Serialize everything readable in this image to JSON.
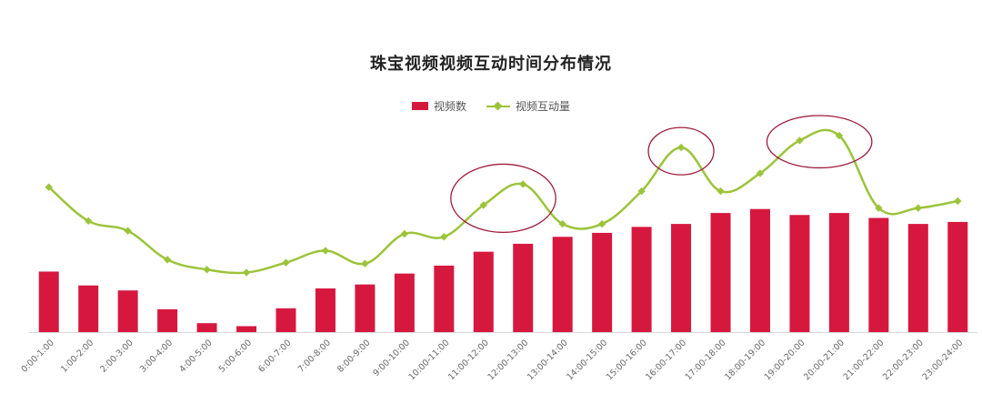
{
  "chart_data": {
    "type": "bar",
    "title": "珠宝视频视频互动时间分布情况",
    "categories": [
      "0:00-1:00",
      "1:00-2:00",
      "2:00-3:00",
      "3:00-4:00",
      "4:00-5:00",
      "5:00-6:00",
      "6:00-7:00",
      "7:00-8:00",
      "8:00-9:00",
      "9:00-10:00",
      "10:00-11:00",
      "11:00-12:00",
      "12:00-13:00",
      "13:00-14:00",
      "14:00-15:00",
      "15:00-16:00",
      "16:00-17:00",
      "17:00-18:00",
      "18:00-19:00",
      "19:00-20:00",
      "20:00-21:00",
      "21:00-22:00",
      "22:00-23:00",
      "23:00-24:00"
    ],
    "series": [
      {
        "name": "视频数",
        "kind": "bar",
        "color": "#D6183F",
        "values": [
          61,
          47,
          42,
          23,
          9,
          6,
          24,
          44,
          48,
          59,
          67,
          81,
          89,
          96,
          100,
          106,
          109,
          120,
          124,
          118,
          120,
          115,
          109,
          111
        ]
      },
      {
        "name": "视频互动量",
        "kind": "line",
        "color": "#9BC43A",
        "values": [
          146,
          112,
          102,
          73,
          63,
          60,
          70,
          82,
          69,
          99,
          96,
          128,
          149,
          109,
          109,
          142,
          186,
          142,
          160,
          193,
          198,
          125,
          125,
          132
        ]
      }
    ],
    "ylim": [
      0,
      220
    ],
    "grid": false,
    "legend": "top-center",
    "annotations": [
      {
        "shape": "circle",
        "color": "#9E1B3B",
        "categories": [
          "11:00-12:00",
          "12:00-13:00"
        ]
      },
      {
        "shape": "circle",
        "color": "#9E1B3B",
        "categories": [
          "16:00-17:00"
        ]
      },
      {
        "shape": "circle",
        "color": "#9E1B3B",
        "categories": [
          "19:00-20:00",
          "20:00-21:00"
        ]
      }
    ]
  }
}
